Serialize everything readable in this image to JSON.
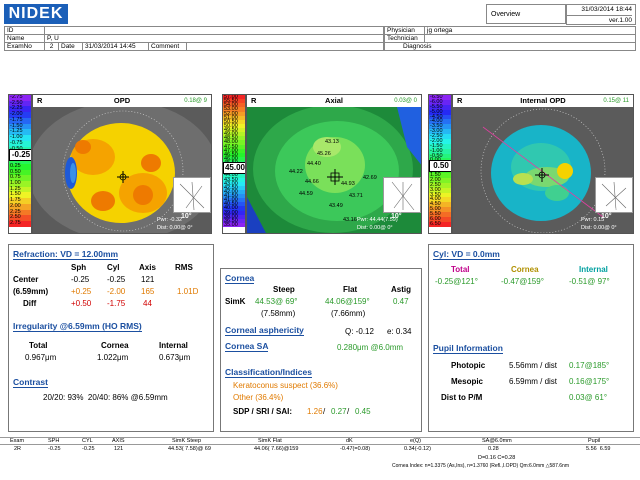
{
  "header": {
    "logo": "NIDEK",
    "id_label": "ID",
    "id_value": "",
    "name_label": "Name",
    "name_value": "P, U",
    "examno_label": "ExamNo",
    "examno_value": "2",
    "date_label": "Date",
    "date_value": "31/03/2014 14:45",
    "comment_label": "Comment",
    "comment_value": "",
    "physician_label": "Physician",
    "physician_value": "jg ortega",
    "technician_label": "Technician",
    "technician_value": "",
    "diagnosis_label": "Diagnosis",
    "diagnosis_value": "",
    "overview": "Overview",
    "print_datetime": "31/03/2014 18:44",
    "version": "ver.1.00"
  },
  "maps": {
    "opd": {
      "eye": "R",
      "title": "OPD",
      "step": "0.18@ 9",
      "scale": [
        "-2.75",
        "-2.50",
        "-2.25",
        "-2.00",
        "-1.75",
        "-1.50",
        "-1.25",
        "-1.00",
        "-0.75",
        "-0.50",
        "-0.25",
        "0.00",
        "0.25",
        "0.50",
        "0.75",
        "1.00",
        "1.25",
        "1.50",
        "1.75",
        "2.00",
        "2.25",
        "2.50",
        "2.75"
      ],
      "scale_top": "4.25",
      "current": "-0.25",
      "bottom_a": "Adj.",
      "bottom_b": "Com. 25",
      "pupil": "Pwr: -0.32",
      "dist": "Dist: 0.00@ 0°",
      "deg": "10°",
      "labels": [
        "90",
        "120",
        "60",
        "150",
        "30",
        "180",
        "0",
        "210",
        "330",
        "240",
        "300",
        "270"
      ]
    },
    "axial": {
      "eye": "R",
      "title": "Axial",
      "step": "0.03@ 0",
      "scale": [
        "57.00",
        "55.50",
        "54.00",
        "53.00",
        "52.00",
        "51.00",
        "50.50",
        "50.00",
        "49.50",
        "49.00",
        "48.50",
        "48.00",
        "47.50",
        "47.00",
        "46.50",
        "46.00",
        "45.50",
        "45.00",
        "44.50",
        "44.00",
        "43.50",
        "43.00",
        "42.50",
        "42.00",
        "41.50",
        "41.00",
        "40.50",
        "40.00",
        "39.00",
        "38.00",
        "36.50",
        "35.00"
      ],
      "current": "45.00",
      "bottom_a": "Abs.",
      "bottom_b": "S-K 1.5",
      "values": [
        "43.13",
        "45.26",
        "44.40",
        "44.22",
        "44.66",
        "44.59",
        "42.69",
        "43.71",
        "43.49",
        "43.16",
        "44.93"
      ],
      "pupil": "Pwr: 44.44(7.59)",
      "dist": "Dist: 0.00@ 0°",
      "deg": "10°"
    },
    "internal": {
      "eye": "R",
      "title": "Internal OPD",
      "step": "0.15@ 11",
      "scale": [
        "-6.50",
        "-6.00",
        "-5.50",
        "-5.00",
        "-4.50",
        "-4.00",
        "-3.50",
        "-3.00",
        "-2.50",
        "-2.00",
        "-1.50",
        "-1.00",
        "-0.50",
        "0.00",
        "0.50",
        "1.00",
        "1.50",
        "2.00",
        "2.50",
        "3.00",
        "3.50",
        "4.00",
        "4.50",
        "5.00",
        "5.50",
        "6.00",
        "6.50"
      ],
      "current": "0.50",
      "bottom_a": "Adj.",
      "bottom_b": "Com. 50",
      "pupil": "Pwr: 0.15",
      "dist": "Dist: 0.00@ 0°",
      "deg": "10°",
      "axis": "4.4@98°"
    }
  },
  "refraction": {
    "title": "Refraction: VD = 12.00mm",
    "headers": [
      "Sph",
      "Cyl",
      "Axis",
      "RMS"
    ],
    "center_label": "Center",
    "center": [
      "-0.25",
      "-0.25",
      "121"
    ],
    "pupil_label": "(6.59mm)",
    "pupil": [
      "+0.25",
      "-2.00",
      "165",
      "1.01D"
    ],
    "diff_label": "Diff",
    "diff": [
      "+0.50",
      "-1.75",
      "44"
    ],
    "irregularity_title": "Irregularity @6.59mm (HO RMS)",
    "irr_headers": [
      "Total",
      "Cornea",
      "Internal"
    ],
    "irr_values": [
      "0.967μm",
      "1.022μm",
      "0.673μm"
    ],
    "contrast_title": "Contrast",
    "contrast_line": "20/20: 93%  20/40: 86% @6.59mm"
  },
  "cornea": {
    "title": "Cornea",
    "headers": [
      "Steep",
      "Flat",
      "Astig"
    ],
    "simk_label": "SimK",
    "steep": "44.53@ 69°",
    "steep_mm": "(7.58mm)",
    "flat": "44.06@159°",
    "flat_mm": "(7.66mm)",
    "astig": "0.47",
    "asphericity_title": "Corneal asphericity",
    "q_text": "Q: -0.12",
    "e_text": "e: 0.34",
    "sa_title": "Cornea SA",
    "sa_value": "0.280μm @6.0mm",
    "class_title": "Classification/Indices",
    "class_1": "Keratoconus suspect (36.6%)",
    "class_2": "Other (36.4%)",
    "sdp_label": "SDP / SRI / SAI:",
    "sdp": "1.26",
    "sri": "0.27",
    "sai": "0.45"
  },
  "cyl": {
    "title": "Cyl: VD = 0.0mm",
    "headers": [
      "Total",
      "Cornea",
      "Internal"
    ],
    "values": [
      "-0.25@121°",
      "-0.47@159°",
      "-0.51@ 97°"
    ],
    "pupil_title": "Pupil Information",
    "photopic_label": "Photopic",
    "photopic": "5.56mm / dist",
    "photopic_d": "0.17@185°",
    "mesopic_label": "Mesopic",
    "mesopic": "6.59mm / dist",
    "mesopic_d": "0.16@175°",
    "dist_label": "Dist to P/M",
    "dist_value": "0.03@ 61°"
  },
  "footer": {
    "headers": [
      "Exam",
      "SPH",
      "CYL",
      "AXIS",
      "SimK Steep",
      "SimK Flat",
      "dK",
      "e(Q)",
      "SA@6.0mm",
      "Pupil"
    ],
    "values": [
      "2R",
      "-0.25",
      "-0.25",
      "121",
      "44.53( 7.58)@ 69",
      "44.06( 7.66)@159",
      "-0.47(=0.08)",
      "0.34(-0.12)",
      "0.28",
      "5.56  6.59"
    ],
    "sub": "D=0.16  C=0.28",
    "note": "Cornea Index: n=1.3375 (As,Ins), n=1.3760 (Refl.,I.OPD)  Qm:6.0mm  △587.6nm"
  },
  "colors": {
    "accent": "#1b5fb8",
    "orange": "#e07a00",
    "red": "#d00000",
    "green": "#2a9a2a",
    "teal": "#00a0a0"
  }
}
